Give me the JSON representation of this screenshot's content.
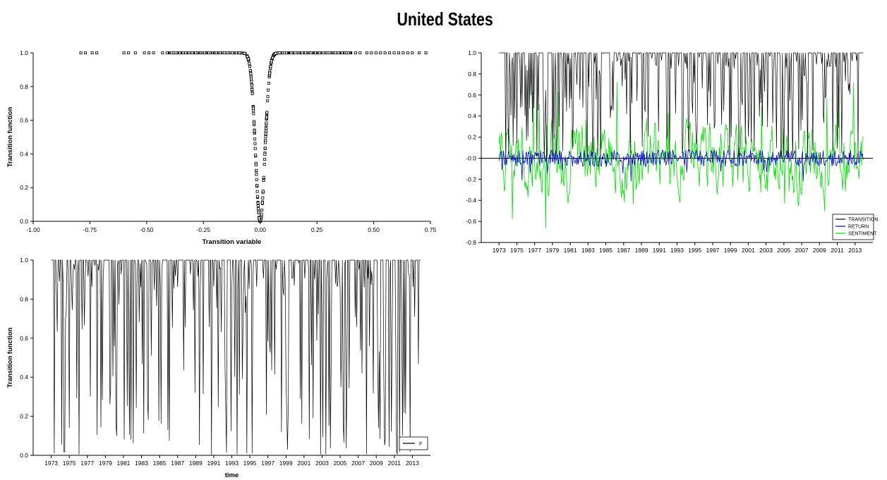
{
  "figure": {
    "title": "United States"
  },
  "chart_data": [
    {
      "type": "scatter",
      "ylabel": "Transition function",
      "xlabel": "Transition variable",
      "xlim": [
        -1.0,
        0.75
      ],
      "ylim": [
        0.0,
        1.0
      ],
      "x_ticks": [
        "-1.00",
        "-0.75",
        "-0.50",
        "-0.25",
        "0.00",
        "0.25",
        "0.50",
        "0.75"
      ],
      "y_ticks": [
        "0.0",
        "0.2",
        "0.4",
        "0.6",
        "0.8",
        "1.0"
      ],
      "marker": "open-square",
      "shape": "logistic-exponential dip centered at 0.00 (min ≈ 0.0, flat at 1.0 beyond |x| ≈ 0.06)",
      "x_range_observed": [
        -0.79,
        0.73
      ]
    },
    {
      "type": "line",
      "xlim": [
        1971,
        2015
      ],
      "ylim": [
        -0.8,
        1.0
      ],
      "x_ticks": [
        "1973",
        "1975",
        "1977",
        "1979",
        "1981",
        "1983",
        "1985",
        "1987",
        "1989",
        "1991",
        "1993",
        "1995",
        "1997",
        "1999",
        "2001",
        "2003",
        "2005",
        "2007",
        "2009",
        "2011",
        "2013"
      ],
      "y_ticks": [
        "-0.8",
        "-0.6",
        "-0.4",
        "-0.2",
        "-0.0",
        "0.2",
        "0.4",
        "0.6",
        "0.8",
        "1.0"
      ],
      "legend_position": "bottom-right",
      "series": [
        {
          "name": "TRANSITION",
          "color": "#000000",
          "range": [
            0.0,
            1.0
          ],
          "description": "mostly 1.0 with frequent downward spikes"
        },
        {
          "name": "RETURN",
          "color": "#0000cc",
          "range": [
            -0.25,
            0.12
          ],
          "description": "small oscillations around 0"
        },
        {
          "name": "SENTIMENT",
          "color": "#00dd00",
          "range": [
            -0.78,
            0.72
          ],
          "description": "volatile oscillations around 0"
        }
      ]
    },
    {
      "type": "line",
      "ylabel": "Transition function",
      "xlabel": "time",
      "xlim": [
        1971,
        2015
      ],
      "ylim": [
        0.0,
        1.0
      ],
      "x_ticks": [
        "1973",
        "1975",
        "1977",
        "1979",
        "1981",
        "1983",
        "1985",
        "1987",
        "1989",
        "1991",
        "1993",
        "1995",
        "1997",
        "1999",
        "2001",
        "2003",
        "2005",
        "2007",
        "2009",
        "2011",
        "2013"
      ],
      "y_ticks": [
        "0.0",
        "0.2",
        "0.4",
        "0.6",
        "0.8",
        "1.0"
      ],
      "legend_position": "bottom-right",
      "series": [
        {
          "name": "F",
          "color": "#000000",
          "range": [
            0.0,
            1.0
          ],
          "description": "mostly 1.0 with frequent downward spikes"
        }
      ]
    }
  ]
}
